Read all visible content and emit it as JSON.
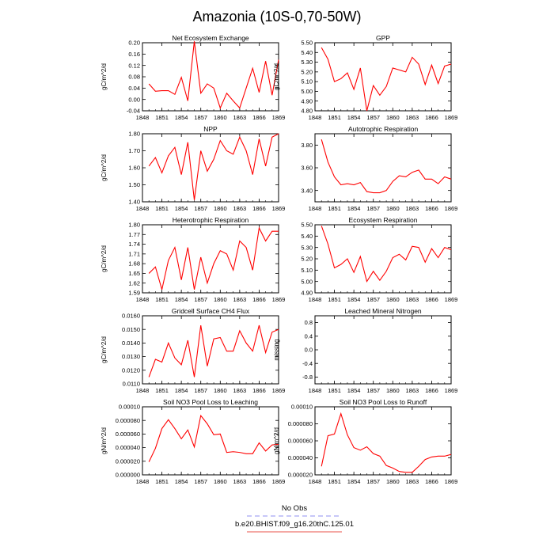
{
  "title": "Amazonia (10S-0,70-50W)",
  "legend": {
    "items": [
      {
        "label": "No Obs",
        "color": "#8f8ff0",
        "dash": true
      },
      {
        "label": "b.e20.BHIST.f09_g16.20thC.125.01",
        "color": "#e8504a",
        "dash": false
      }
    ]
  },
  "colors": {
    "series": "#ff0000"
  },
  "chart_data": [
    {
      "type": "line",
      "title": "Net Ecosystem Exchange",
      "ylabel": "gC/m^2/d",
      "xlim": [
        1848,
        1869
      ],
      "ylim": [
        -0.04,
        0.2
      ],
      "xticks": [
        "1848",
        "1851",
        "1854",
        "1857",
        "1860",
        "1863",
        "1866",
        "1869"
      ],
      "yticks": [
        "-0.04",
        "0.00",
        "0.04",
        "0.08",
        "0.12",
        "0.16",
        "0.20"
      ],
      "x": [
        1849,
        1850,
        1851,
        1852,
        1853,
        1854,
        1855,
        1856,
        1857,
        1858,
        1859,
        1860,
        1861,
        1862,
        1863,
        1864,
        1865,
        1866,
        1867,
        1868,
        1869
      ],
      "series": [
        {
          "values": [
            0.055,
            0.029,
            0.031,
            0.031,
            0.018,
            0.078,
            -0.005,
            0.205,
            0.022,
            0.055,
            0.04,
            -0.03,
            0.022,
            -0.005,
            -0.03,
            0.04,
            0.11,
            0.025,
            0.135,
            0.015,
            0.14
          ]
        }
      ]
    },
    {
      "type": "line",
      "title": "GPP",
      "ylabel": "gC/m^2/d",
      "xlim": [
        1848,
        1869
      ],
      "ylim": [
        4.8,
        5.5
      ],
      "xticks": [
        "1848",
        "1851",
        "1854",
        "1857",
        "1860",
        "1863",
        "1866",
        "1869"
      ],
      "yticks": [
        "4.80",
        "4.90",
        "5.00",
        "5.10",
        "5.20",
        "5.30",
        "5.40",
        "5.50"
      ],
      "x": [
        1849,
        1850,
        1851,
        1852,
        1853,
        1854,
        1855,
        1856,
        1857,
        1858,
        1859,
        1860,
        1861,
        1862,
        1863,
        1864,
        1865,
        1866,
        1867,
        1868,
        1869
      ],
      "series": [
        {
          "values": [
            5.45,
            5.33,
            5.1,
            5.13,
            5.19,
            5.02,
            5.24,
            4.8,
            5.06,
            4.96,
            5.05,
            5.24,
            5.22,
            5.2,
            5.35,
            5.28,
            5.07,
            5.27,
            5.08,
            5.26,
            5.28
          ]
        }
      ]
    },
    {
      "type": "line",
      "title": "NPP",
      "ylabel": "gC/m^2/d",
      "xlim": [
        1848,
        1869
      ],
      "ylim": [
        1.4,
        1.8
      ],
      "xticks": [
        "1848",
        "1851",
        "1854",
        "1857",
        "1860",
        "1863",
        "1866",
        "1869"
      ],
      "yticks": [
        "1.40",
        "1.50",
        "1.60",
        "1.70",
        "1.80"
      ],
      "x": [
        1849,
        1850,
        1851,
        1852,
        1853,
        1854,
        1855,
        1856,
        1857,
        1858,
        1859,
        1860,
        1861,
        1862,
        1863,
        1864,
        1865,
        1866,
        1867,
        1868,
        1869
      ],
      "series": [
        {
          "values": [
            1.61,
            1.66,
            1.57,
            1.67,
            1.72,
            1.56,
            1.75,
            1.41,
            1.7,
            1.58,
            1.65,
            1.76,
            1.7,
            1.68,
            1.78,
            1.7,
            1.56,
            1.77,
            1.61,
            1.78,
            1.8
          ]
        }
      ]
    },
    {
      "type": "line",
      "title": "Autotrophic Respiration",
      "ylabel": "",
      "xlim": [
        1848,
        1869
      ],
      "ylim": [
        3.3,
        3.9
      ],
      "xticks": [
        "1848",
        "1851",
        "1854",
        "1857",
        "1860",
        "1863",
        "1866",
        "1869"
      ],
      "yticks": [
        "3.40",
        "3.60",
        "3.80"
      ],
      "x": [
        1849,
        1850,
        1851,
        1852,
        1853,
        1854,
        1855,
        1856,
        1857,
        1858,
        1859,
        1860,
        1861,
        1862,
        1863,
        1864,
        1865,
        1866,
        1867,
        1868,
        1869
      ],
      "series": [
        {
          "values": [
            3.85,
            3.65,
            3.52,
            3.45,
            3.46,
            3.45,
            3.47,
            3.39,
            3.38,
            3.38,
            3.4,
            3.48,
            3.53,
            3.52,
            3.56,
            3.58,
            3.5,
            3.5,
            3.46,
            3.52,
            3.5
          ]
        }
      ]
    },
    {
      "type": "line",
      "title": "Heterotrophic Respiration",
      "ylabel": "gC/m^2/d",
      "xlim": [
        1848,
        1869
      ],
      "ylim": [
        1.59,
        1.8
      ],
      "xticks": [
        "1848",
        "1851",
        "1854",
        "1857",
        "1860",
        "1863",
        "1866",
        "1869"
      ],
      "yticks": [
        "1.59",
        "1.62",
        "1.65",
        "1.68",
        "1.71",
        "1.74",
        "1.77",
        "1.80"
      ],
      "x": [
        1849,
        1850,
        1851,
        1852,
        1853,
        1854,
        1855,
        1856,
        1857,
        1858,
        1859,
        1860,
        1861,
        1862,
        1863,
        1864,
        1865,
        1866,
        1867,
        1868,
        1869
      ],
      "series": [
        {
          "values": [
            1.65,
            1.67,
            1.6,
            1.69,
            1.73,
            1.63,
            1.73,
            1.6,
            1.7,
            1.62,
            1.68,
            1.72,
            1.71,
            1.66,
            1.75,
            1.73,
            1.66,
            1.79,
            1.75,
            1.78,
            1.78
          ]
        }
      ]
    },
    {
      "type": "line",
      "title": "Ecosystem Respiration",
      "ylabel": "",
      "xlim": [
        1848,
        1869
      ],
      "ylim": [
        4.9,
        5.5
      ],
      "xticks": [
        "1848",
        "1851",
        "1854",
        "1857",
        "1860",
        "1863",
        "1866",
        "1869"
      ],
      "yticks": [
        "4.90",
        "5.00",
        "5.10",
        "5.20",
        "5.30",
        "5.40",
        "5.50"
      ],
      "x": [
        1849,
        1850,
        1851,
        1852,
        1853,
        1854,
        1855,
        1856,
        1857,
        1858,
        1859,
        1860,
        1861,
        1862,
        1863,
        1864,
        1865,
        1866,
        1867,
        1868,
        1869
      ],
      "series": [
        {
          "values": [
            5.49,
            5.33,
            5.12,
            5.15,
            5.2,
            5.08,
            5.22,
            5.0,
            5.09,
            5.01,
            5.09,
            5.21,
            5.24,
            5.19,
            5.31,
            5.3,
            5.17,
            5.29,
            5.21,
            5.3,
            5.28
          ]
        }
      ]
    },
    {
      "type": "line",
      "title": "Gridcell Surface CH4 Flux",
      "ylabel": "gC/m^2/d",
      "xlim": [
        1848,
        1869
      ],
      "ylim": [
        0.011,
        0.016
      ],
      "xticks": [
        "1848",
        "1851",
        "1854",
        "1857",
        "1860",
        "1863",
        "1866",
        "1869"
      ],
      "yticks": [
        "0.0110",
        "0.0120",
        "0.0130",
        "0.0140",
        "0.0150",
        "0.0160"
      ],
      "x": [
        1849,
        1850,
        1851,
        1852,
        1853,
        1854,
        1855,
        1856,
        1857,
        1858,
        1859,
        1860,
        1861,
        1862,
        1863,
        1864,
        1865,
        1866,
        1867,
        1868,
        1869
      ],
      "series": [
        {
          "values": [
            0.0115,
            0.0128,
            0.0126,
            0.014,
            0.0129,
            0.0124,
            0.0142,
            0.0115,
            0.0153,
            0.0123,
            0.0143,
            0.0144,
            0.0134,
            0.0134,
            0.0149,
            0.014,
            0.0134,
            0.0153,
            0.0133,
            0.0148,
            0.015
          ]
        }
      ]
    },
    {
      "type": "line",
      "title": "Leached Mineral Nitrogen",
      "ylabel": "missing",
      "xlim": [
        1848,
        1869
      ],
      "ylim": [
        -1.0,
        1.0
      ],
      "xticks": [
        "1848",
        "1851",
        "1854",
        "1857",
        "1860",
        "1863",
        "1866",
        "1869"
      ],
      "yticks": [
        "-0.8",
        "-0.4",
        "0.0",
        "0.4",
        "0.8"
      ],
      "x": [],
      "series": []
    },
    {
      "type": "line",
      "title": "Soil NO3 Pool Loss to Leaching",
      "ylabel": "gN/m^2/d",
      "xlim": [
        1848,
        1869
      ],
      "ylim": [
        0.0,
        0.0001
      ],
      "xticks": [
        "1848",
        "1851",
        "1854",
        "1857",
        "1860",
        "1863",
        "1866",
        "1869"
      ],
      "yticks": [
        "0.000000",
        "0.000020",
        "0.000040",
        "0.000060",
        "0.000080",
        "0.00010"
      ],
      "x": [
        1849,
        1850,
        1851,
        1852,
        1853,
        1854,
        1855,
        1856,
        1857,
        1858,
        1859,
        1860,
        1861,
        1862,
        1863,
        1864,
        1865,
        1866,
        1867,
        1868,
        1869
      ],
      "series": [
        {
          "values": [
            1.9e-05,
            3.9e-05,
            6.8e-05,
            8.1e-05,
            6.8e-05,
            5.3e-05,
            6.6e-05,
            4.1e-05,
            8.7e-05,
            7.5e-05,
            5.9e-05,
            6e-05,
            3.3e-05,
            3.4e-05,
            3.3e-05,
            3.1e-05,
            3.1e-05,
            4.7e-05,
            3.5e-05,
            4.4e-05,
            4.5e-05
          ]
        }
      ]
    },
    {
      "type": "line",
      "title": "Soil NO3 Pool Loss to Runoff",
      "ylabel": "gN/m^2/d",
      "xlim": [
        1848,
        1869
      ],
      "ylim": [
        2e-05,
        0.0001
      ],
      "xticks": [
        "1848",
        "1851",
        "1854",
        "1857",
        "1860",
        "1863",
        "1866",
        "1869"
      ],
      "yticks": [
        "0.000020",
        "0.000040",
        "0.000060",
        "0.000080",
        "0.00010"
      ],
      "x": [
        1849,
        1850,
        1851,
        1852,
        1853,
        1854,
        1855,
        1856,
        1857,
        1858,
        1859,
        1860,
        1861,
        1862,
        1863,
        1864,
        1865,
        1866,
        1867,
        1868,
        1869
      ],
      "series": [
        {
          "values": [
            3e-05,
            6.6e-05,
            6.8e-05,
            9.2e-05,
            6.7e-05,
            5.2e-05,
            4.9e-05,
            5.3e-05,
            4.5e-05,
            4.2e-05,
            3.1e-05,
            2.8e-05,
            2.4e-05,
            2.3e-05,
            2.3e-05,
            3e-05,
            3.8e-05,
            4.1e-05,
            4.2e-05,
            4.2e-05,
            4.4e-05
          ]
        }
      ]
    }
  ]
}
